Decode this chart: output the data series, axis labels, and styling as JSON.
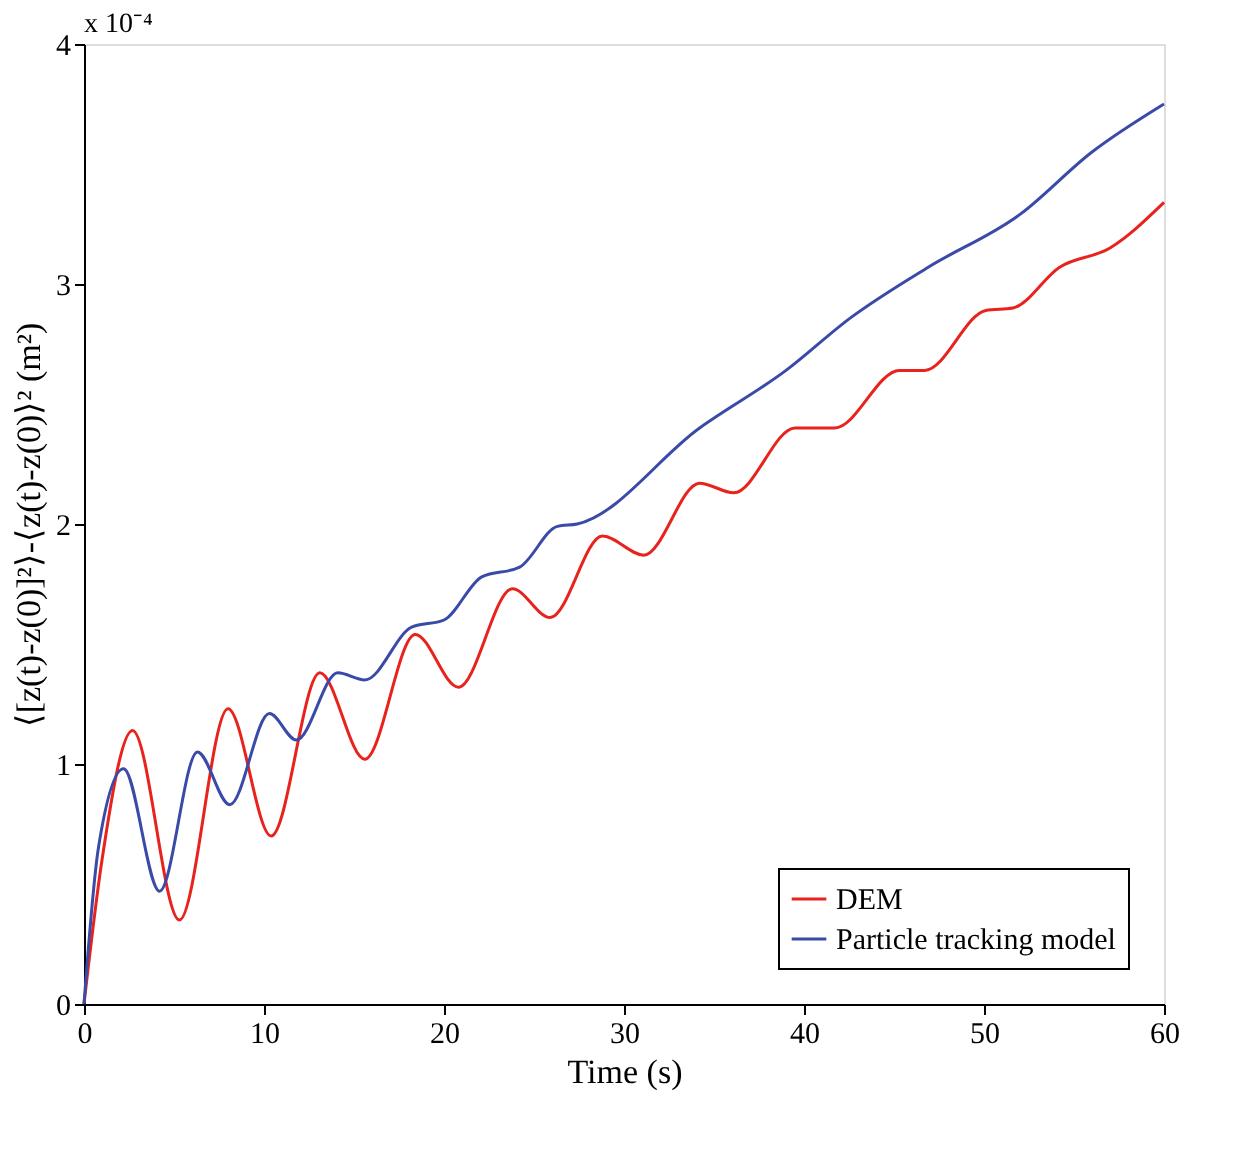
{
  "chart_data": {
    "type": "line",
    "xlabel": "Time (s)",
    "ylabel": "⟨[z(t)-z(0)]²⟩-⟨z(t)-z(0)⟩² (m²)",
    "annotations": [
      "x 10⁻⁴"
    ],
    "xlim": [
      0,
      60
    ],
    "xticks": [
      0,
      10,
      20,
      30,
      40,
      50,
      60
    ],
    "ylim": [
      0,
      4
    ],
    "yticks": [
      0,
      1,
      2,
      3,
      4
    ],
    "grid": false,
    "legend": "bottom right",
    "line_style": "solid",
    "marker": "none",
    "series": [
      {
        "name": "DEM",
        "color": "#e8221c",
        "x": [
          0,
          1,
          2.7,
          5.3,
          8.0,
          10.4,
          13.1,
          15.6,
          18.4,
          20.8,
          23.8,
          25.9,
          28.8,
          31.1,
          34.2,
          36.1,
          39.5,
          41.7,
          45.3,
          46.7,
          50.1,
          51.6,
          54.2,
          57,
          60
        ],
        "values": [
          0,
          0.6,
          1.14,
          0.35,
          1.23,
          0.7,
          1.38,
          1.02,
          1.54,
          1.32,
          1.73,
          1.61,
          1.95,
          1.87,
          2.17,
          2.13,
          2.4,
          2.4,
          2.64,
          2.64,
          2.89,
          2.9,
          3.07,
          3.15,
          3.34
        ]
      },
      {
        "name": "Particle tracking model",
        "color": "#3a4aa8",
        "x": [
          0,
          0.8,
          2.2,
          4.2,
          6.3,
          8.1,
          10.3,
          11.8,
          14.1,
          15.6,
          18.2,
          20,
          22.1,
          24.2,
          26.3,
          27.4,
          34.2,
          39.0,
          42.6,
          46.9,
          52,
          56,
          60
        ],
        "values": [
          0,
          0.65,
          0.98,
          0.47,
          1.05,
          0.83,
          1.21,
          1.1,
          1.38,
          1.35,
          1.57,
          1.6,
          1.78,
          1.82,
          1.99,
          2.0,
          2.4,
          2.64,
          2.86,
          3.07,
          3.29,
          3.55,
          3.75
        ]
      }
    ]
  }
}
